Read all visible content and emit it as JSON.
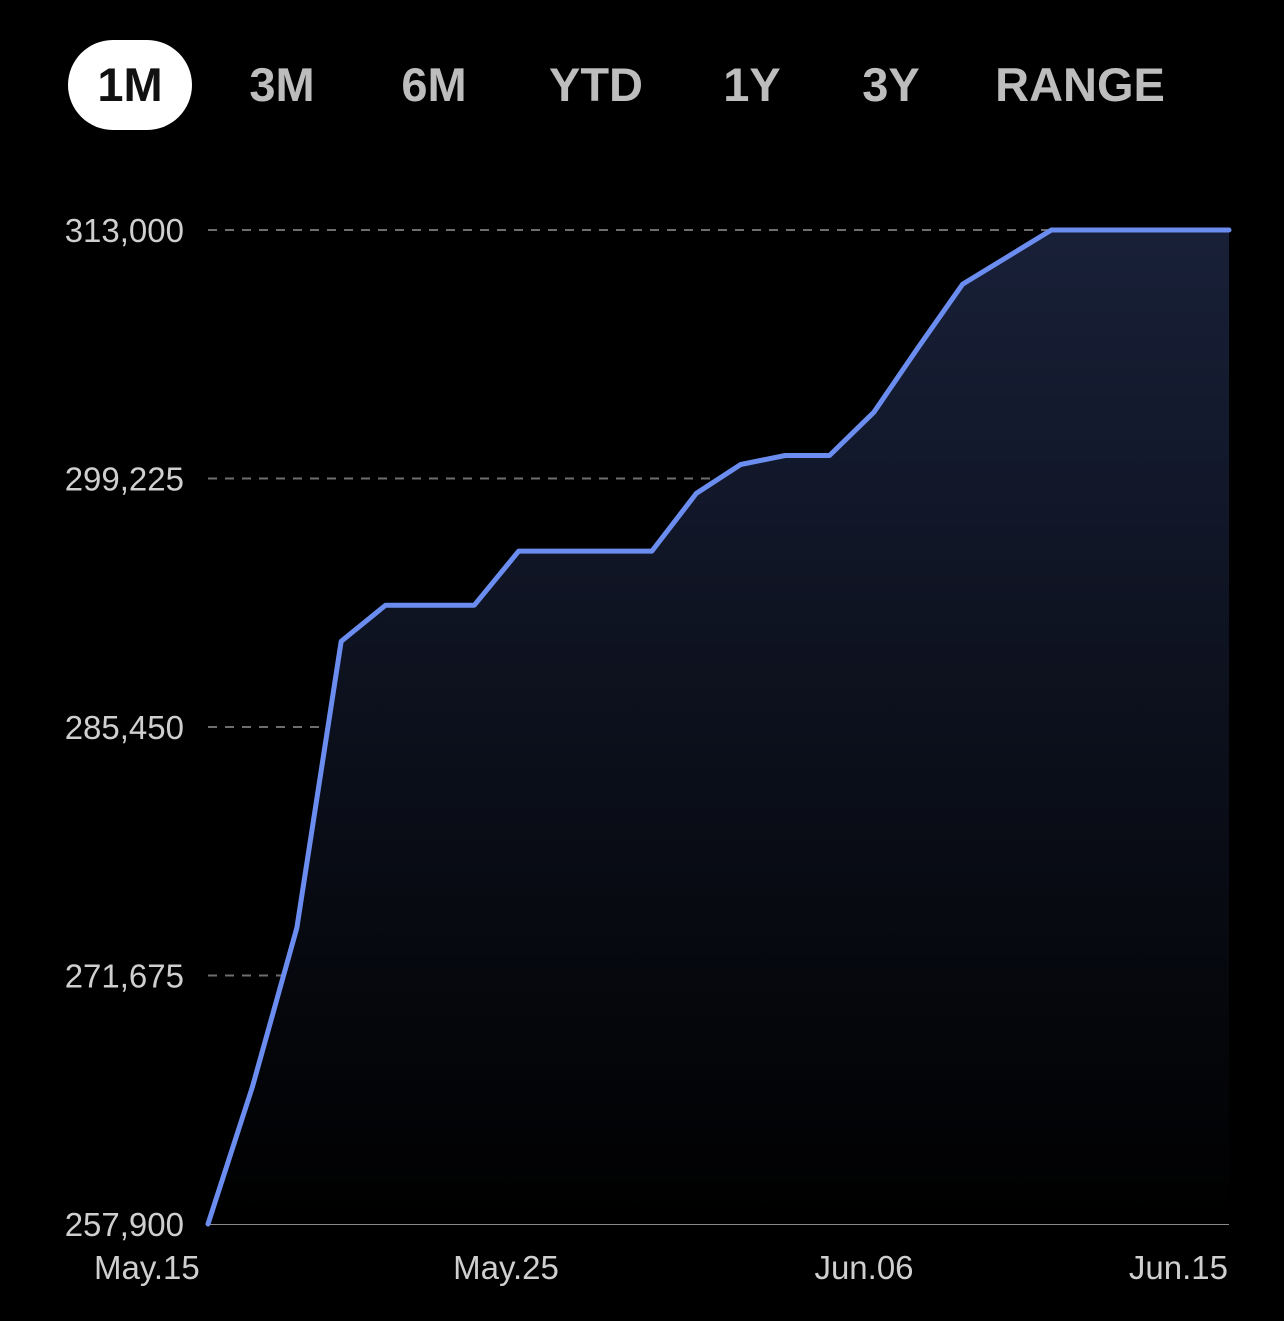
{
  "range_tabs": {
    "items": [
      {
        "label": "1M",
        "active": true
      },
      {
        "label": "3M",
        "active": false
      },
      {
        "label": "6M",
        "active": false
      },
      {
        "label": "YTD",
        "active": false
      },
      {
        "label": "1Y",
        "active": false
      },
      {
        "label": "3Y",
        "active": false
      },
      {
        "label": "RANGE",
        "active": false
      }
    ]
  },
  "colors": {
    "background": "#000000",
    "line": "#6b8df0",
    "area_top": "#182038",
    "grid": "#6e6e6e",
    "tick_text": "#cfcfcf",
    "active_tab_bg": "#ffffff"
  },
  "chart_data": {
    "type": "area",
    "title": "",
    "xlabel": "",
    "ylabel": "",
    "ylim": [
      257900,
      313000
    ],
    "y_ticks": [
      313000,
      299225,
      285450,
      271675,
      257900
    ],
    "y_tick_labels": [
      "313,000",
      "299,225",
      "285,450",
      "271,675",
      "257,900"
    ],
    "x_tick_labels": [
      "May.15",
      "May.25",
      "Jun.06",
      "Jun.15"
    ],
    "grid": "horizontal-dashed",
    "series": [
      {
        "values": [
          257900,
          265500,
          274300,
          290200,
          292200,
          292200,
          292200,
          295200,
          295200,
          295200,
          295200,
          298400,
          300000,
          300500,
          300500,
          302900,
          306500,
          310000,
          311500,
          313000,
          313000,
          313000,
          313000,
          313000
        ]
      }
    ]
  }
}
